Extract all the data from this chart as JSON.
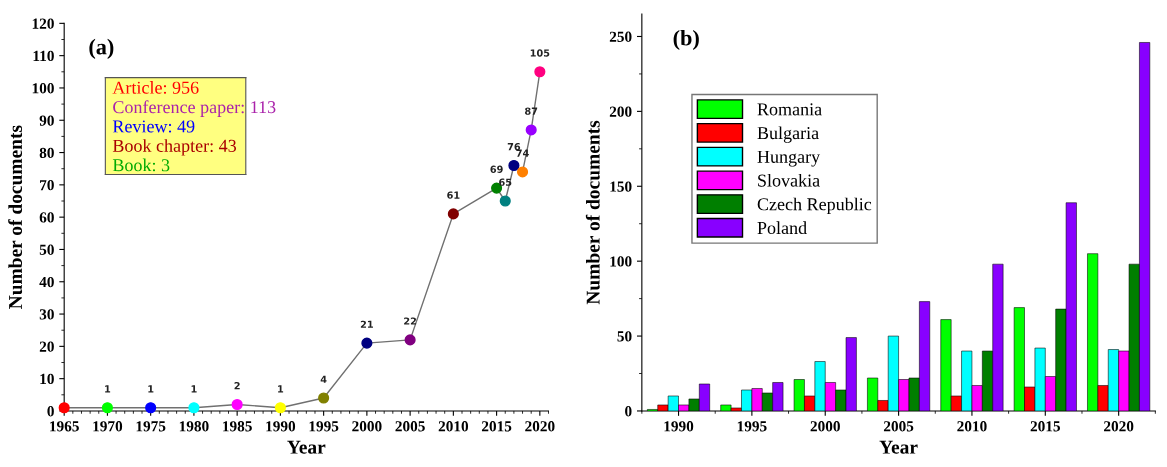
{
  "chart_data": [
    {
      "type": "line",
      "xlabel": "Year",
      "ylabel": "Number of documents",
      "x": [
        1965,
        1970,
        1975,
        1980,
        1985,
        1990,
        1995,
        2000,
        2005,
        2010,
        2015,
        2016,
        2017,
        2018,
        2019,
        2020
      ],
      "series": [
        {
          "color": "#707070",
          "values": [
            1,
            1,
            1,
            1,
            2,
            1,
            4,
            21,
            22,
            61,
            69,
            65,
            76,
            74,
            87,
            105
          ],
          "colors": [
            "#ff0000",
            "#00ff00",
            "#0000ff",
            "#00ffff",
            "#ff00ff",
            "#ffff00",
            "#808000",
            "#000080",
            "#800080",
            "#800000",
            "#008000",
            "#008080",
            "#000080",
            "#ff8000",
            "#9900ff",
            "#ff0080"
          ],
          "value_labels": [
            null,
            "1",
            "1",
            "1",
            "2",
            "1",
            "4",
            "21",
            "22",
            "61",
            "69",
            "65",
            "76",
            "74",
            "87",
            "105"
          ]
        }
      ],
      "marker": "circle",
      "xlim": [
        1965,
        2021
      ],
      "xticks": [
        1965,
        1970,
        1975,
        1980,
        1985,
        1990,
        1995,
        2000,
        2005,
        2010,
        2015,
        2020
      ],
      "ylim": [
        0,
        120
      ],
      "yticks": [
        0,
        10,
        20,
        30,
        40,
        50,
        60,
        70,
        80,
        90,
        100,
        110,
        120
      ],
      "annotations": [
        "(a)",
        "Article: 956",
        "Conference paper: 113",
        "Review: 49",
        "Book chapter: 43",
        "Book: 3"
      ]
    },
    {
      "type": "bar",
      "xlabel": "Year",
      "ylabel": "Number of documents",
      "categories": [
        "1990",
        "1995",
        "2000",
        "2005",
        "2010",
        "2015",
        "2020"
      ],
      "series": [
        {
          "name": "Romania",
          "color": "#00ff00",
          "values": [
            1,
            4,
            21,
            22,
            61,
            69,
            105
          ]
        },
        {
          "name": "Bulgaria",
          "color": "#ff0000",
          "values": [
            4,
            2,
            10,
            7,
            10,
            16,
            17
          ]
        },
        {
          "name": "Hungary",
          "color": "#00ffff",
          "values": [
            10,
            14,
            33,
            50,
            40,
            42,
            41
          ]
        },
        {
          "name": "Slovakia",
          "color": "#ff00ff",
          "values": [
            4,
            15,
            19,
            21,
            17,
            23,
            40
          ]
        },
        {
          "name": "Czech Republic",
          "color": "#007f00",
          "values": [
            8,
            12,
            14,
            22,
            40,
            68,
            98
          ]
        },
        {
          "name": "Poland",
          "color": "#8800ff",
          "values": [
            18,
            19,
            49,
            73,
            98,
            139,
            246
          ]
        }
      ],
      "ylim": [
        0,
        265
      ],
      "yticks": [
        0,
        50,
        100,
        150,
        200,
        250
      ],
      "legend": "top left",
      "annotations": [
        "(b)"
      ]
    }
  ]
}
